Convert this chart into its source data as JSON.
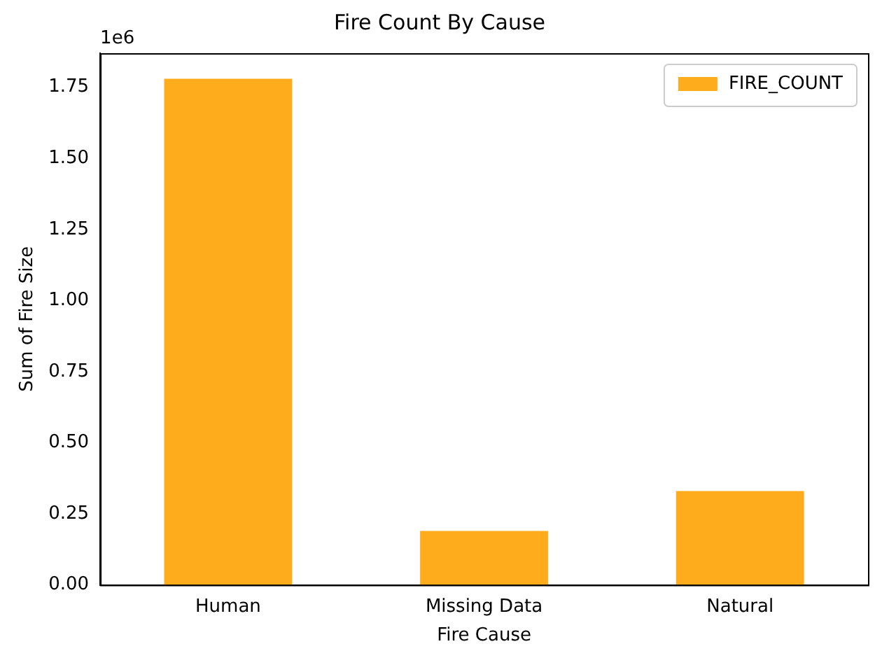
{
  "chart_data": {
    "type": "bar",
    "title": "Fire Count By Cause",
    "xlabel": "Fire Cause",
    "ylabel": "Sum of Fire Size",
    "categories": [
      "Human",
      "Missing Data",
      "Natural"
    ],
    "series": [
      {
        "name": "FIRE_COUNT",
        "color": "#ffac1c",
        "values": [
          1.78,
          0.19,
          0.33
        ]
      }
    ],
    "ylim": [
      0,
      1.87
    ],
    "yticks": [
      {
        "value": 0,
        "label": "0.00"
      },
      {
        "value": 0.25,
        "label": "0.25"
      },
      {
        "value": 0.5,
        "label": "0.50"
      },
      {
        "value": 0.75,
        "label": "0.75"
      },
      {
        "value": 1,
        "label": "1.00"
      },
      {
        "value": 1.25,
        "label": "1.25"
      },
      {
        "value": 1.5,
        "label": "1.50"
      },
      {
        "value": 1.75,
        "label": "1.75"
      }
    ],
    "annotations": [
      "1e6"
    ],
    "legend": "top right",
    "grid": false
  }
}
